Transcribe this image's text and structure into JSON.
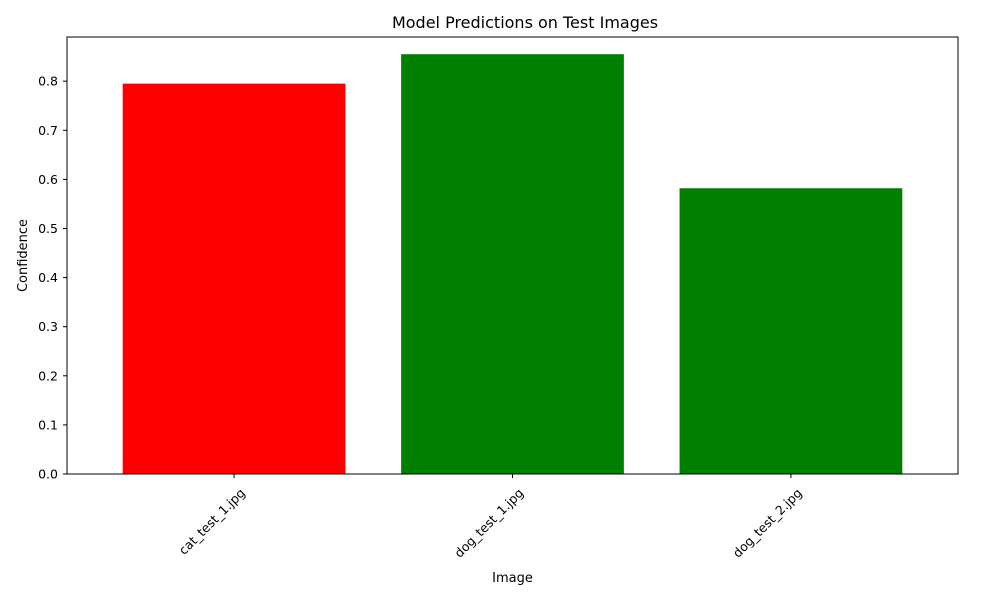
{
  "chart_data": {
    "type": "bar",
    "title": "Model Predictions on Test Images",
    "xlabel": "Image",
    "ylabel": "Confidence",
    "categories": [
      "cat_test_1.jpg",
      "dog_test_1.jpg",
      "dog_test_2.jpg"
    ],
    "values": [
      0.795,
      0.855,
      0.582
    ],
    "bar_colors": [
      "#ff0000",
      "#008000",
      "#008000"
    ],
    "ylim": [
      0,
      0.89
    ],
    "yticks": [
      0.0,
      0.1,
      0.2,
      0.3,
      0.4,
      0.5,
      0.6,
      0.7,
      0.8
    ],
    "ytick_labels": [
      "0.0",
      "0.1",
      "0.2",
      "0.3",
      "0.4",
      "0.5",
      "0.6",
      "0.7",
      "0.8"
    ],
    "xtick_rotation_deg": 45,
    "grid": false,
    "legend": "none"
  }
}
